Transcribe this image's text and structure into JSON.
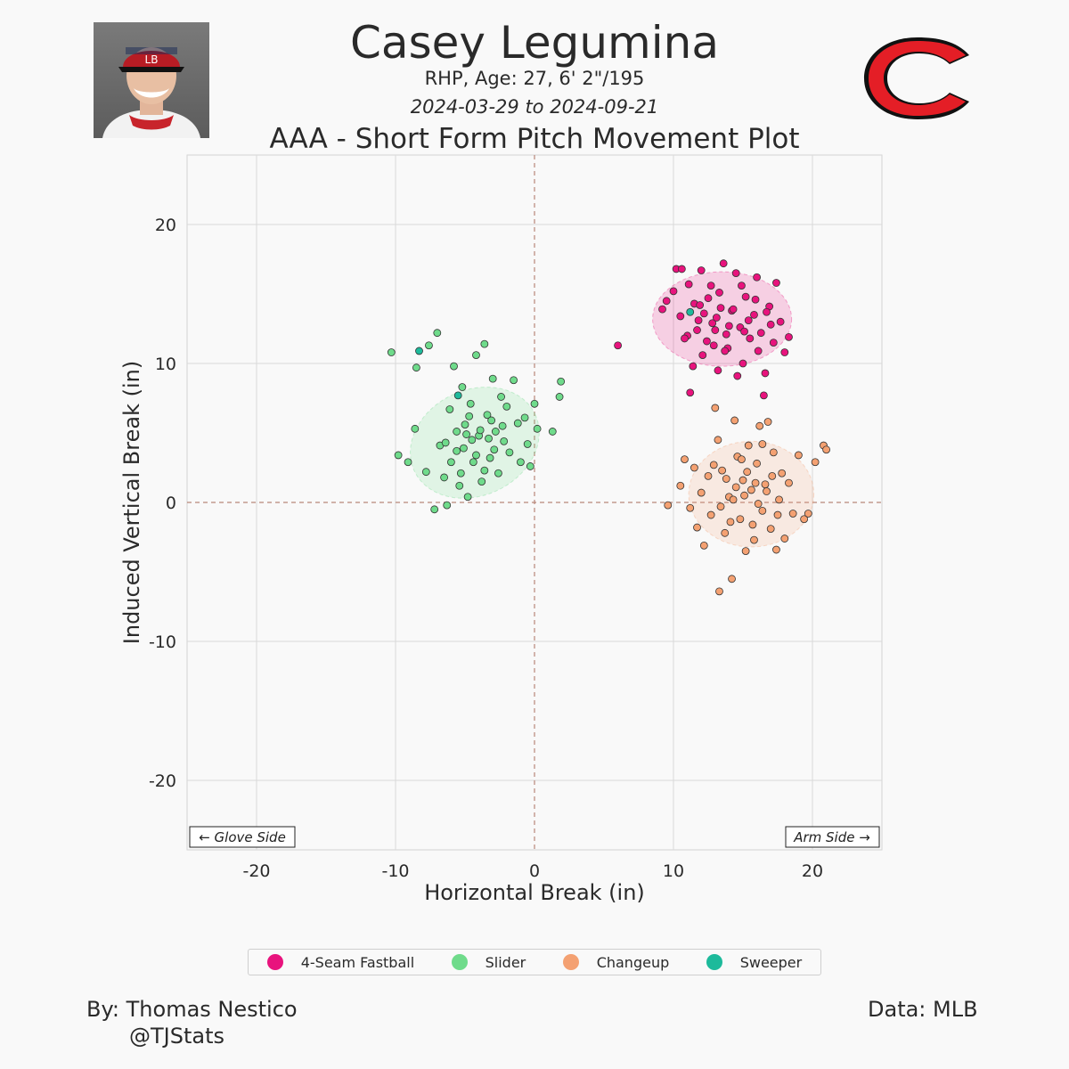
{
  "header": {
    "player_name": "Casey Legumina",
    "bio": "RHP, Age: 27, 6' 2\"/195",
    "date_range": "2024-03-29 to 2024-09-21",
    "logo_icon": "reds-c-logo-icon",
    "headshot_icon": "player-headshot-icon"
  },
  "chart_data": {
    "type": "scatter",
    "title": "AAA - Short Form Pitch Movement Plot",
    "xlabel": "Horizontal Break (in)",
    "ylabel": "Induced Vertical Break (in)",
    "xlim": [
      -25,
      25
    ],
    "ylim": [
      -25,
      25
    ],
    "xticks": [
      -20,
      -10,
      0,
      10,
      20
    ],
    "yticks": [
      -20,
      -10,
      0,
      10,
      20
    ],
    "tick_labels_x": [
      "-20",
      "-10",
      "0",
      "10",
      "20"
    ],
    "tick_labels_y": [
      "-20",
      "-10",
      "0",
      "10",
      "20"
    ],
    "grid": true,
    "glove_side_label": "← Glove Side",
    "arm_side_label": "Arm Side →",
    "legend_position": "bottom",
    "series": [
      {
        "name": "4-Seam Fastball",
        "color": "#e8137d",
        "ellipse": {
          "cx": 13.5,
          "cy": 13.2,
          "rx": 5.0,
          "ry": 3.4,
          "angle": 0
        },
        "points": [
          [
            6,
            11.3
          ],
          [
            9.2,
            13.9
          ],
          [
            9.5,
            14.5
          ],
          [
            10,
            15.2
          ],
          [
            10.2,
            16.8
          ],
          [
            10.6,
            16.8
          ],
          [
            11,
            12
          ],
          [
            11.2,
            7.9
          ],
          [
            11.5,
            14.3
          ],
          [
            11.8,
            13.1
          ],
          [
            12,
            16.7
          ],
          [
            12.4,
            11.6
          ],
          [
            12.7,
            15.6
          ],
          [
            13,
            12.4
          ],
          [
            13.2,
            9.5
          ],
          [
            13.4,
            14
          ],
          [
            13.6,
            17.2
          ],
          [
            13.9,
            11.1
          ],
          [
            14.2,
            13.8
          ],
          [
            14.5,
            16.5
          ],
          [
            14.8,
            12.6
          ],
          [
            15,
            10
          ],
          [
            15.2,
            14.8
          ],
          [
            15.5,
            11.8
          ],
          [
            15.8,
            13.5
          ],
          [
            16,
            16.2
          ],
          [
            16.3,
            12.2
          ],
          [
            16.6,
            9.3
          ],
          [
            16.9,
            14.1
          ],
          [
            17.2,
            11.5
          ],
          [
            17.4,
            15.8
          ],
          [
            17.7,
            13
          ],
          [
            18,
            10.8
          ],
          [
            18.3,
            11.9
          ],
          [
            16.5,
            7.7
          ],
          [
            12.2,
            13.6
          ],
          [
            12.8,
            12.9
          ],
          [
            13.1,
            13.3
          ],
          [
            14,
            12.7
          ],
          [
            14.3,
            13.9
          ],
          [
            11.7,
            12.4
          ],
          [
            12.5,
            14.7
          ],
          [
            13.7,
            10.9
          ],
          [
            15.4,
            13.1
          ],
          [
            10.8,
            11.8
          ],
          [
            11.1,
            15.7
          ],
          [
            14.9,
            15.6
          ],
          [
            16.1,
            10.9
          ],
          [
            13.3,
            15.1
          ],
          [
            12.1,
            10.6
          ],
          [
            10.5,
            13.4
          ],
          [
            15.9,
            14.6
          ],
          [
            17,
            12.8
          ],
          [
            11.4,
            9.8
          ],
          [
            14.6,
            9.1
          ],
          [
            13.8,
            12.1
          ],
          [
            12.9,
            11.3
          ],
          [
            15.1,
            12.3
          ],
          [
            16.7,
            13.7
          ],
          [
            11.9,
            14.2
          ]
        ]
      },
      {
        "name": "Slider",
        "color": "#6fdb8b",
        "ellipse": {
          "cx": -4.3,
          "cy": 4.3,
          "rx": 4.8,
          "ry": 3.8,
          "angle": -25
        },
        "points": [
          [
            -10.3,
            10.8
          ],
          [
            -9.8,
            3.4
          ],
          [
            -9.1,
            2.9
          ],
          [
            -8.6,
            5.3
          ],
          [
            -8.5,
            9.7
          ],
          [
            -7.8,
            2.2
          ],
          [
            -7.6,
            11.3
          ],
          [
            -7.2,
            -0.5
          ],
          [
            -7,
            12.2
          ],
          [
            -6.8,
            4.1
          ],
          [
            -6.5,
            1.8
          ],
          [
            -6.3,
            -0.2
          ],
          [
            -6.1,
            6.7
          ],
          [
            -5.8,
            9.8
          ],
          [
            -5.6,
            3.7
          ],
          [
            -5.4,
            1.2
          ],
          [
            -5.2,
            8.3
          ],
          [
            -5,
            5.6
          ],
          [
            -4.8,
            0.4
          ],
          [
            -4.6,
            7.1
          ],
          [
            -4.4,
            2.9
          ],
          [
            -4.2,
            10.6
          ],
          [
            -4,
            4.8
          ],
          [
            -3.8,
            1.5
          ],
          [
            -3.6,
            11.4
          ],
          [
            -3.4,
            6.3
          ],
          [
            -3.2,
            3.2
          ],
          [
            -3,
            8.9
          ],
          [
            -2.8,
            5.1
          ],
          [
            -2.6,
            2.1
          ],
          [
            -2.4,
            7.6
          ],
          [
            -2.2,
            4.4
          ],
          [
            -2,
            6.9
          ],
          [
            -1.8,
            3.6
          ],
          [
            -1.5,
            8.8
          ],
          [
            -1.2,
            5.7
          ],
          [
            -1,
            2.9
          ],
          [
            -0.7,
            6.1
          ],
          [
            -0.5,
            4.2
          ],
          [
            -0.3,
            2.6
          ],
          [
            0,
            7.1
          ],
          [
            0.2,
            5.3
          ],
          [
            1.3,
            5.1
          ],
          [
            1.8,
            7.6
          ],
          [
            1.9,
            8.7
          ],
          [
            -4.5,
            4.5
          ],
          [
            -5.1,
            3.9
          ],
          [
            -3.9,
            5.2
          ],
          [
            -4.2,
            3.4
          ],
          [
            -5.6,
            5.1
          ],
          [
            -3.3,
            4.6
          ],
          [
            -6,
            2.9
          ],
          [
            -2.9,
            3.8
          ],
          [
            -4.7,
            6.2
          ],
          [
            -3.6,
            2.3
          ],
          [
            -5.3,
            2.1
          ],
          [
            -4.9,
            4.9
          ],
          [
            -3.1,
            5.9
          ],
          [
            -6.4,
            4.3
          ],
          [
            -2.3,
            5.5
          ]
        ]
      },
      {
        "name": "Changeup",
        "color": "#f4a172",
        "ellipse": {
          "cx": 15.6,
          "cy": 0.6,
          "rx": 4.5,
          "ry": 3.8,
          "angle": 0
        },
        "points": [
          [
            9.6,
            -0.2
          ],
          [
            10.5,
            1.2
          ],
          [
            10.8,
            3.1
          ],
          [
            11.2,
            -0.4
          ],
          [
            11.5,
            2.5
          ],
          [
            11.7,
            -1.8
          ],
          [
            12,
            0.7
          ],
          [
            12.2,
            -3.1
          ],
          [
            12.5,
            1.9
          ],
          [
            12.7,
            -0.9
          ],
          [
            13,
            6.8
          ],
          [
            13.2,
            4.5
          ],
          [
            13.3,
            -6.4
          ],
          [
            13.5,
            2.3
          ],
          [
            13.7,
            -2.2
          ],
          [
            14,
            0.4
          ],
          [
            14.2,
            -5.5
          ],
          [
            14.4,
            5.9
          ],
          [
            14.6,
            3.3
          ],
          [
            14.8,
            -1.2
          ],
          [
            15,
            1.6
          ],
          [
            15.2,
            -3.5
          ],
          [
            15.4,
            4.1
          ],
          [
            15.6,
            0.9
          ],
          [
            15.8,
            -2.7
          ],
          [
            16,
            2.8
          ],
          [
            16.2,
            5.5
          ],
          [
            16.4,
            -0.6
          ],
          [
            16.6,
            1.3
          ],
          [
            16.8,
            5.8
          ],
          [
            17,
            -1.9
          ],
          [
            17.2,
            3.6
          ],
          [
            17.4,
            -3.4
          ],
          [
            17.6,
            0.2
          ],
          [
            17.8,
            2.1
          ],
          [
            18,
            -2.6
          ],
          [
            18.3,
            1.4
          ],
          [
            18.6,
            -0.8
          ],
          [
            19,
            3.4
          ],
          [
            19.4,
            -1.2
          ],
          [
            19.7,
            -0.8
          ],
          [
            20.2,
            2.9
          ],
          [
            20.8,
            4.1
          ],
          [
            21,
            3.8
          ],
          [
            15.1,
            0.5
          ],
          [
            14.5,
            1.1
          ],
          [
            16.1,
            -0.1
          ],
          [
            15.3,
            2.2
          ],
          [
            14.1,
            -1.4
          ],
          [
            16.7,
            0.8
          ],
          [
            13.8,
            1.7
          ],
          [
            17.1,
            1.9
          ],
          [
            15.7,
            -1.6
          ],
          [
            14.9,
            3.1
          ],
          [
            13.4,
            -0.3
          ],
          [
            16.4,
            4.2
          ],
          [
            12.9,
            2.7
          ],
          [
            17.5,
            -0.9
          ],
          [
            14.3,
            0.2
          ],
          [
            15.9,
            1.4
          ]
        ]
      },
      {
        "name": "Sweeper",
        "color": "#1dba9b",
        "ellipse": null,
        "points": [
          [
            -8.3,
            10.9
          ],
          [
            -5.5,
            7.7
          ],
          [
            11.2,
            13.7
          ]
        ]
      }
    ]
  },
  "footer": {
    "credit": "By: Thomas Nestico",
    "handle": "@TJStats",
    "data_source": "Data: MLB"
  }
}
